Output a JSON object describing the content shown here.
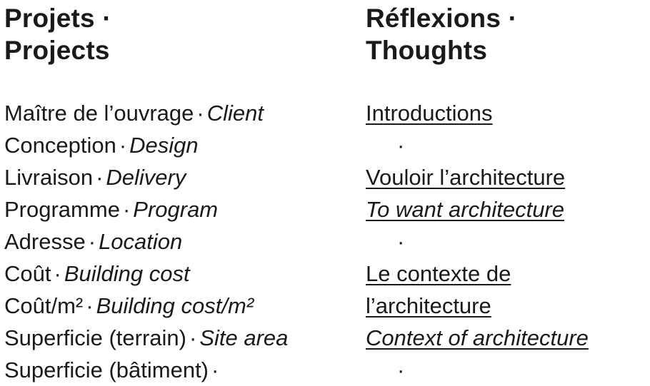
{
  "left": {
    "heading_fr": "Projets ·",
    "heading_en": "Projects",
    "rows": [
      {
        "fr": "Maître de l’ouvrage",
        "en": "Client"
      },
      {
        "fr": "Conception",
        "en": "Design"
      },
      {
        "fr": "Livraison",
        "en": "Delivery"
      },
      {
        "fr": "Programme",
        "en": "Program"
      },
      {
        "fr": "Adresse",
        "en": "Location"
      },
      {
        "fr": "Coût",
        "en": "Building cost"
      },
      {
        "fr": "Coût/m²",
        "en": "Building cost/m²"
      },
      {
        "fr": "Superficie (terrain)",
        "en": "Site area"
      },
      {
        "fr": "Superficie (bâtiment)",
        "en": ""
      }
    ],
    "separator": "·"
  },
  "right": {
    "heading_fr": "Réflexions ·",
    "heading_en": "Thoughts",
    "links": {
      "introductions": "Introductions",
      "dot1": "·",
      "vouloir_fr": "Vouloir l’architecture",
      "vouloir_en": "To want architecture",
      "dot2": "·",
      "contexte_fr_1": "Le contexte de",
      "contexte_fr_2": "l’architecture",
      "contexte_en": "Context of architecture",
      "dot3": "·"
    }
  }
}
